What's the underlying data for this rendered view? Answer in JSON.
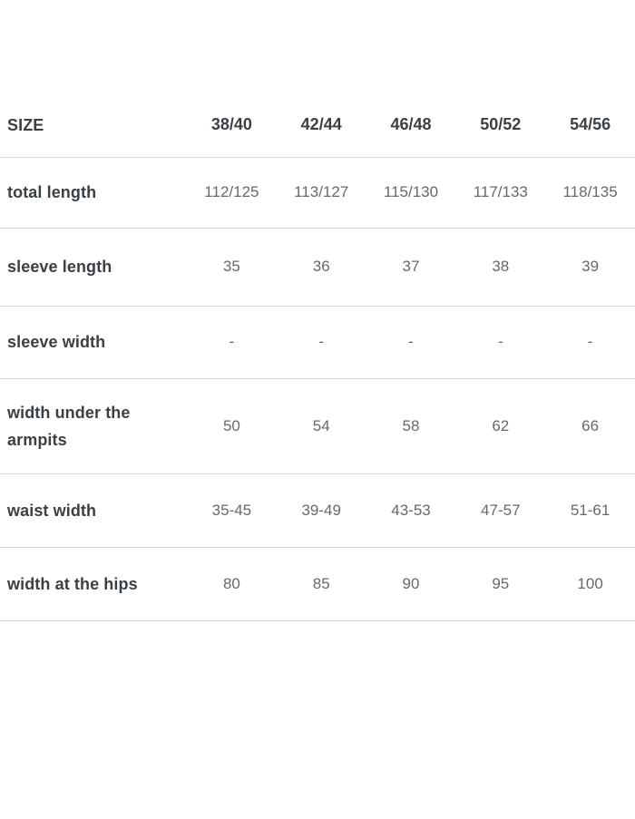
{
  "table": {
    "header": {
      "label": "SIZE",
      "sizes": [
        "38/40",
        "42/44",
        "46/48",
        "50/52",
        "54/56"
      ]
    },
    "rows": [
      {
        "label": "total length",
        "values": [
          "112/125",
          "113/127",
          "115/130",
          "117/133",
          "118/135"
        ]
      },
      {
        "label": "sleeve length",
        "values": [
          "35",
          "36",
          "37",
          "38",
          "39"
        ]
      },
      {
        "label": "sleeve width",
        "values": [
          "-",
          "-",
          "-",
          "-",
          "-"
        ]
      },
      {
        "label": "width under the armpits",
        "values": [
          "50",
          "54",
          "58",
          "62",
          "66"
        ]
      },
      {
        "label": "waist width",
        "values": [
          "35-45",
          "39-49",
          "43-53",
          "47-57",
          "51-61"
        ]
      },
      {
        "label": "width at the hips",
        "values": [
          "80",
          "85",
          "90",
          "95",
          "100"
        ]
      }
    ],
    "colors": {
      "label_text": "#3b4045",
      "value_text": "#65696c",
      "divider": "#d9d9d9"
    }
  }
}
